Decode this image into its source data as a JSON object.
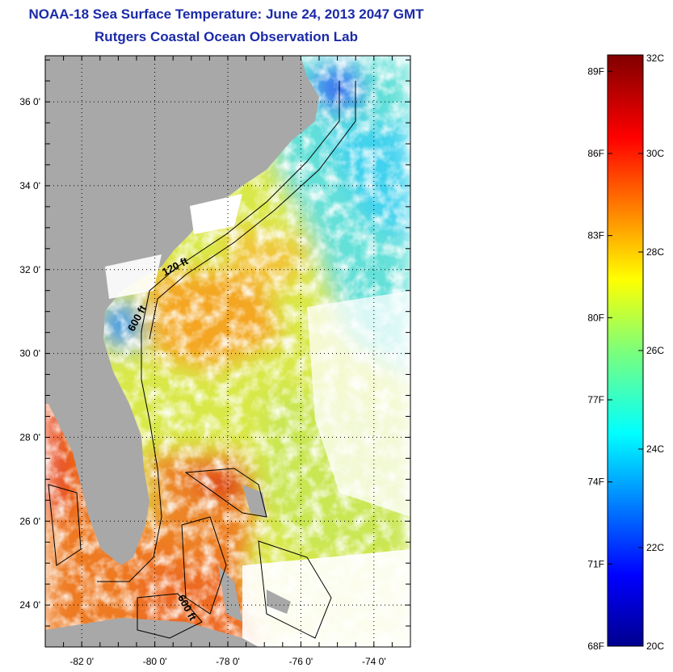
{
  "title": {
    "line1": "NOAA-18 Sea Surface Temperature:  June 24, 2013 2047 GMT",
    "line2": "Rutgers Coastal Ocean Observation Lab"
  },
  "map": {
    "lat_ticks": [
      "36 0'",
      "34 0'",
      "32 0'",
      "30 0'",
      "28 0'",
      "26 0'",
      "24 0'"
    ],
    "lat_values": [
      36,
      34,
      32,
      30,
      28,
      26,
      24
    ],
    "lon_ticks": [
      "-82 0'",
      "-80 0'",
      "-78 0'",
      "-76 0'",
      "-74 0'"
    ],
    "lon_values": [
      -82,
      -80,
      -78,
      -76,
      -74
    ],
    "lat_range": [
      23.0,
      37.1
    ],
    "lon_range": [
      -83.0,
      -73.0
    ],
    "contour_labels": [
      {
        "text": "120 ft",
        "lat": 32.0,
        "lon": -79.4,
        "angle": -28
      },
      {
        "text": "600 ft",
        "lat": 30.8,
        "lon": -80.4,
        "angle": -62
      },
      {
        "text": "600 ft",
        "lat": 23.9,
        "lon": -79.2,
        "angle": 62
      }
    ],
    "colors": {
      "land": "#a8a8a8",
      "cloud": "#ffffff",
      "gridline": "#000000"
    }
  },
  "colorbar": {
    "celsius_labels": [
      "32C",
      "30C",
      "28C",
      "26C",
      "24C",
      "22C",
      "20C"
    ],
    "celsius_values": [
      32,
      30,
      28,
      26,
      24,
      22,
      20
    ],
    "fahrenheit_labels": [
      "89F",
      "86F",
      "83F",
      "80F",
      "77F",
      "74F",
      "71F",
      "68F"
    ],
    "fahrenheit_values": [
      89,
      86,
      83,
      80,
      77,
      74,
      71,
      68
    ],
    "range_c": [
      20,
      32
    ]
  }
}
